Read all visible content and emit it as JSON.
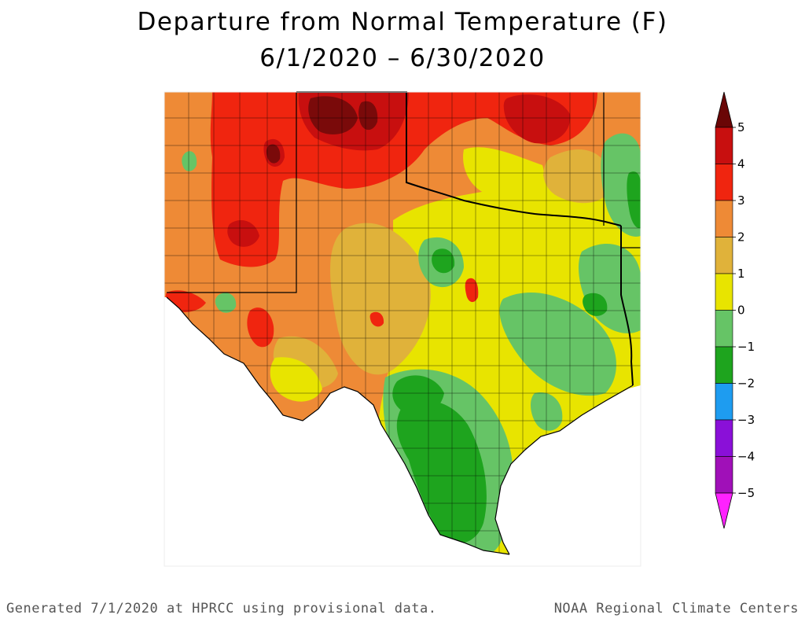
{
  "title": {
    "line1": "Departure from Normal Temperature (F)",
    "line2": "6/1/2020 – 6/30/2020"
  },
  "legend": {
    "stops": [
      {
        "value": 5,
        "label": "5",
        "color": "#7a0a0a"
      },
      {
        "value": 4,
        "label": "4",
        "color": "#c80f0f"
      },
      {
        "value": 3,
        "label": "3",
        "color": "#f0250f"
      },
      {
        "value": 2,
        "label": "2",
        "color": "#ee8a36"
      },
      {
        "value": 1,
        "label": "1",
        "color": "#e0b23a"
      },
      {
        "value": 0,
        "label": "0",
        "color": "#e8e400"
      },
      {
        "value": -1,
        "label": "−1",
        "color": "#66c466"
      },
      {
        "value": -2,
        "label": "−2",
        "color": "#1ea41e"
      },
      {
        "value": -3,
        "label": "−3",
        "color": "#1e9cf0"
      },
      {
        "value": -4,
        "label": "−4",
        "color": "#8a10d8"
      },
      {
        "value": -5,
        "label": "−5",
        "color": "#a010b8"
      }
    ],
    "under_color": "#ff22ff",
    "over_color": "#6a0606"
  },
  "colors": {
    "very_hot": "#7a0a0a",
    "hot": "#c80f0f",
    "warm3": "#f0250f",
    "warm2": "#ee8a36",
    "warm1": "#e0b23a",
    "neutral": "#e8e400",
    "cool1": "#66c466",
    "cool2": "#1ea41e",
    "water": "#ffffff",
    "border": "#000000"
  },
  "footer": {
    "left": "Generated 7/1/2020 at HPRCC using provisional data.",
    "right": "NOAA Regional Climate Centers"
  }
}
